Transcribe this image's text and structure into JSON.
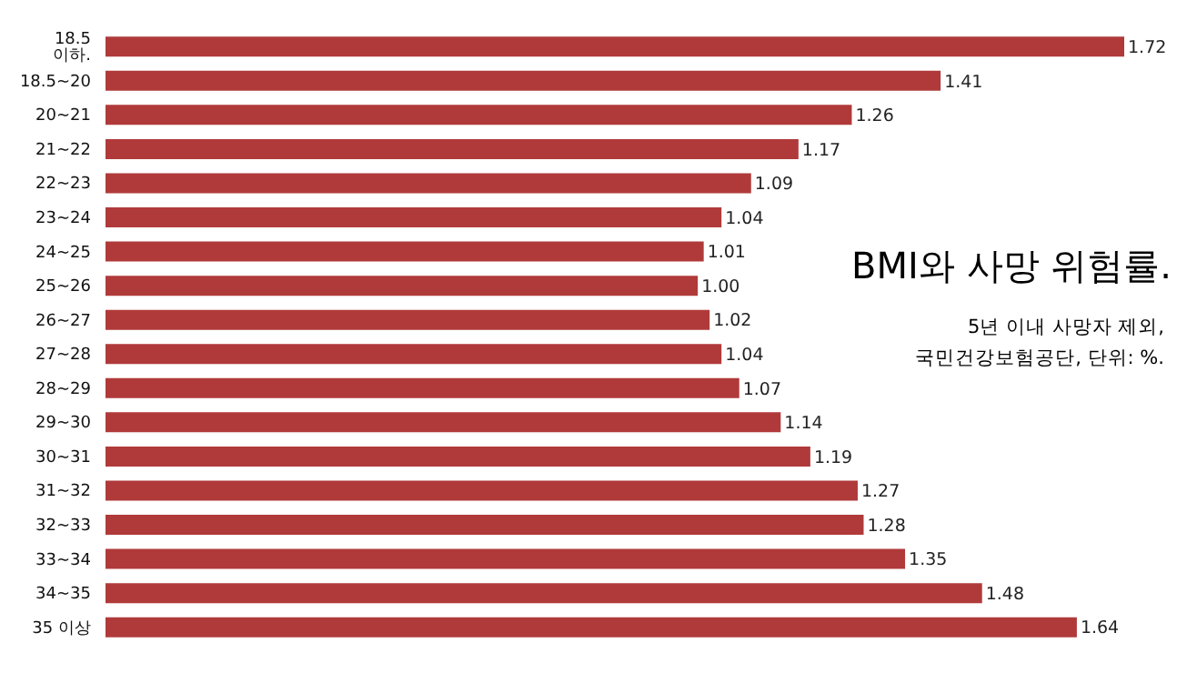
{
  "chart_data": {
    "type": "bar",
    "orientation": "horizontal",
    "title": "BMI와 사망 위험률.",
    "subtitle": "5년 이내 사망자 제외,\n국민건강보험공단, 단위: %.",
    "categories": [
      "18.5 이하.",
      "18.5~20",
      "20~21",
      "21~22",
      "22~23",
      "23~24",
      "24~25",
      "25~26",
      "26~27",
      "27~28",
      "28~29",
      "29~30",
      "30~31",
      "31~32",
      "32~33",
      "33~34",
      "34~35",
      "35 이상"
    ],
    "values": [
      1.72,
      1.41,
      1.26,
      1.17,
      1.09,
      1.04,
      1.01,
      1.0,
      1.02,
      1.04,
      1.07,
      1.14,
      1.19,
      1.27,
      1.28,
      1.35,
      1.48,
      1.64
    ],
    "value_labels": [
      "1.72",
      "1.41",
      "1.26",
      "1.17",
      "1.09",
      "1.04",
      "1.01",
      "1.00",
      "1.02",
      "1.04",
      "1.07",
      "1.14",
      "1.19",
      "1.27",
      "1.28",
      "1.35",
      "1.48",
      "1.64"
    ],
    "color": "#b03a3a",
    "tick_labels": "y"
  }
}
